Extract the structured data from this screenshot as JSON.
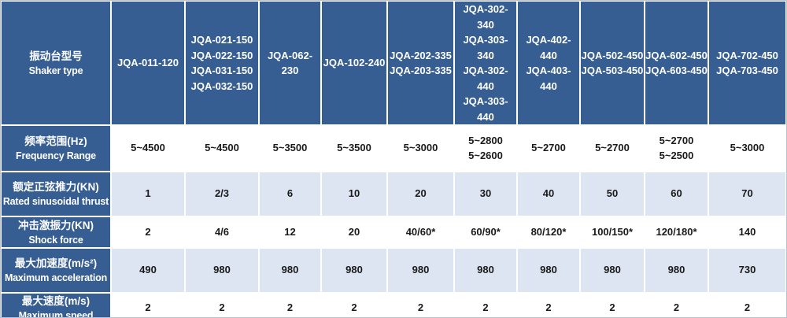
{
  "table": {
    "header": {
      "label_zh": "振动台型号",
      "label_en": "Shaker type",
      "columns": [
        {
          "models": [
            "JQA-011-120"
          ]
        },
        {
          "models": [
            "JQA-021-150",
            "JQA-022-150",
            "JQA-031-150",
            "JQA-032-150"
          ]
        },
        {
          "models": [
            "JQA-062-230"
          ]
        },
        {
          "models": [
            "JQA-102-240"
          ]
        },
        {
          "models": [
            "JQA-202-335",
            "JQA-203-335"
          ]
        },
        {
          "models": [
            "JQA-302-340",
            "JQA-303-340",
            "JQA-302-440",
            "JQA-303-440"
          ]
        },
        {
          "models": [
            "JQA-402-440",
            "JQA-403-440"
          ]
        },
        {
          "models": [
            "JQA-502-450",
            "JQA-503-450"
          ]
        },
        {
          "models": [
            "JQA-602-450",
            "JQA-603-450"
          ]
        },
        {
          "models": [
            "JQA-702-450",
            "JQA-703-450"
          ]
        }
      ]
    },
    "rows": [
      {
        "label_zh": "频率范围(Hz)",
        "label_en": "Frequency Range",
        "values": [
          "5~4500",
          "5~4500",
          "5~3500",
          "5~3500",
          "5~3000",
          "5~2800\n5~2600",
          "5~2700",
          "5~2700",
          "5~2700\n5~2500",
          "5~3000"
        ]
      },
      {
        "label_zh": "额定正弦推力(KN)",
        "label_en": "Rated sinusoidal thrust",
        "values": [
          "1",
          "2/3",
          "6",
          "10",
          "20",
          "30",
          "40",
          "50",
          "60",
          "70"
        ]
      },
      {
        "label_zh": "冲击激振力(KN)",
        "label_en": "Shock force",
        "values": [
          "2",
          "4/6",
          "12",
          "20",
          "40/60*",
          "60/90*",
          "80/120*",
          "100/150*",
          "120/180*",
          "140"
        ]
      },
      {
        "label_zh": "最大加速度(m/s²)",
        "label_en": "Maximum acceleration",
        "values": [
          "490",
          "980",
          "980",
          "980",
          "980",
          "980",
          "980",
          "980",
          "980",
          "730"
        ]
      },
      {
        "label_zh": "最大速度(m/s)",
        "label_en": "Maximum speed",
        "values": [
          "2",
          "2",
          "2",
          "2",
          "2",
          "2",
          "2",
          "2",
          "2",
          "2"
        ]
      }
    ],
    "colors": {
      "header_bg": "#365E92",
      "header_text": "#FFFFFF",
      "row_bg": "#FFFFFF",
      "row_alt_bg": "#DCE5F1",
      "cell_text": "#1A1A1A",
      "grid": "#FFFFFF",
      "outer_border": "#B7C3D6"
    }
  }
}
